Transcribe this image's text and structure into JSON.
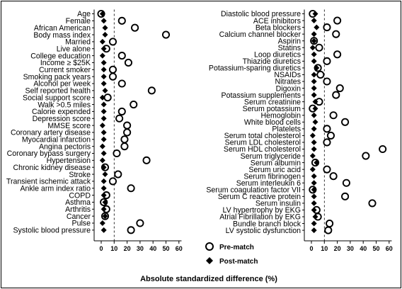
{
  "chart_data": {
    "type": "scatter",
    "xlabel": "Absolute standardized difference (%)",
    "xlim": [
      -5,
      62
    ],
    "xticks": [
      0,
      10,
      20,
      30,
      40,
      50,
      60
    ],
    "reference_line_x": 10,
    "grid": false,
    "legend": {
      "placement": "bottom-right",
      "entries": [
        {
          "marker": "circle",
          "label": "Pre-match"
        },
        {
          "marker": "diamond",
          "label": "Post-match"
        }
      ]
    },
    "series": [
      {
        "name": "Pre-match",
        "marker": "circle"
      },
      {
        "name": "Post-match",
        "marker": "diamond"
      }
    ],
    "panels": [
      {
        "variables": [
          {
            "label": "Age",
            "pre": 0,
            "post": 1
          },
          {
            "label": "Female",
            "pre": 16,
            "post": 2
          },
          {
            "label": "African American",
            "pre": 26,
            "post": 3
          },
          {
            "label": "Body mass index",
            "pre": 50,
            "post": 3
          },
          {
            "label": "Married",
            "pre": 9,
            "post": 1
          },
          {
            "label": "Live alone",
            "pre": 4,
            "post": 2
          },
          {
            "label": "College education",
            "pre": 16,
            "post": 1
          },
          {
            "label": "Income ≥ $25K",
            "pre": 21,
            "post": 2
          },
          {
            "label": "Current smoker",
            "pre": 9,
            "post": 2
          },
          {
            "label": "Smoking pack years",
            "pre": 9,
            "post": 2
          },
          {
            "label": "Alcohol per week",
            "pre": 16,
            "post": 2
          },
          {
            "label": "Self reported health",
            "pre": 39,
            "post": 3
          },
          {
            "label": "Social support score",
            "pre": 5,
            "post": 1
          },
          {
            "label": "Walk >0.5 miles",
            "pre": 25,
            "post": 2
          },
          {
            "label": "Calorie expended",
            "pre": 16,
            "post": 2
          },
          {
            "label": "Depression score",
            "pre": 14,
            "post": 2
          },
          {
            "label": "MMSE score",
            "pre": 20,
            "post": 1
          },
          {
            "label": "Coronary artery disease",
            "pre": 20,
            "post": 2
          },
          {
            "label": "Myocardial infarction",
            "pre": 18,
            "post": 2
          },
          {
            "label": "Angina pectoris",
            "pre": 18,
            "post": 1
          },
          {
            "label": "Coronary bypass surgery",
            "pre": 12,
            "post": 2
          },
          {
            "label": "Hypertension",
            "pre": 35,
            "post": 1
          },
          {
            "label": "Chronic kidney disease",
            "pre": 3,
            "post": 2
          },
          {
            "label": "Stroke",
            "pre": 13,
            "post": 3
          },
          {
            "label": "Transient ischemic attack",
            "pre": 9,
            "post": 2
          },
          {
            "label": "Ankle arm index ratio",
            "pre": 23,
            "post": 2
          },
          {
            "label": "COPD",
            "pre": 4,
            "post": 2
          },
          {
            "label": "Asthma",
            "pre": 2,
            "post": 3
          },
          {
            "label": "Arthritis",
            "pre": 4,
            "post": 2
          },
          {
            "label": "Cancer",
            "pre": 3,
            "post": 3
          },
          {
            "label": "Pulse",
            "pre": 30,
            "post": 1
          },
          {
            "label": "Systolic blood pressure",
            "pre": 23,
            "post": 2
          }
        ]
      },
      {
        "variables": [
          {
            "label": "Diastolic blood pressure",
            "pre": 1,
            "post": 3
          },
          {
            "label": "ACE inhibitors",
            "pre": 20,
            "post": 2
          },
          {
            "label": "Beta blockers",
            "pre": 12,
            "post": 4
          },
          {
            "label": "Calcium channel blocker",
            "pre": 19,
            "post": 2
          },
          {
            "label": "Aspirin",
            "pre": 2,
            "post": 2
          },
          {
            "label": "Statins",
            "pre": 6,
            "post": 1
          },
          {
            "label": "Loop diuretics",
            "pre": 20,
            "post": 2
          },
          {
            "label": "Thiazide diuretics",
            "pre": 12,
            "post": 2
          },
          {
            "label": "Potassium-sparing diuretics",
            "pre": 5,
            "post": 4
          },
          {
            "label": "NSAIDs",
            "pre": 7,
            "post": 2
          },
          {
            "label": "Nitrates",
            "pre": 12,
            "post": 2
          },
          {
            "label": "Digoxin",
            "pre": 22,
            "post": 2
          },
          {
            "label": "Potassium supplements",
            "pre": 19,
            "post": 2
          },
          {
            "label": "Serum creatinine",
            "pre": 6,
            "post": 3
          },
          {
            "label": "Serum potassium",
            "pre": 1,
            "post": 3
          },
          {
            "label": "Hemoglobin",
            "pre": 17,
            "post": 2
          },
          {
            "label": "White blood cells",
            "pre": 26,
            "post": 3
          },
          {
            "label": "Platelets",
            "pre": 12,
            "post": 2
          },
          {
            "label": "Serum total cholesterol",
            "pre": 15,
            "post": 1
          },
          {
            "label": "Serum LDL cholesterol",
            "pre": 12,
            "post": 2
          },
          {
            "label": "Serum HDL cholesterol",
            "pre": 55,
            "post": 2
          },
          {
            "label": "Serum triglyceride",
            "pre": 42,
            "post": 1
          },
          {
            "label": "Serum albumin",
            "pre": 3,
            "post": 4
          },
          {
            "label": "Serum uric acid",
            "pre": 12,
            "post": 1
          },
          {
            "label": "Serum fibrinogen",
            "pre": 17,
            "post": 2
          },
          {
            "label": "Serum interleukin 6",
            "pre": 27,
            "post": 2
          },
          {
            "label": "Serum coagulation factor VII",
            "pre": 1,
            "post": 2
          },
          {
            "label": "Serum C reactive protein",
            "pre": 26,
            "post": 2
          },
          {
            "label": "Serum insulin",
            "pre": 47,
            "post": 2
          },
          {
            "label": "LV hypertrophy by EKG",
            "pre": 4,
            "post": 2
          },
          {
            "label": "Atrial Fibrillation by EKG",
            "pre": 5,
            "post": 3
          },
          {
            "label": "Bundle branch block",
            "pre": 14,
            "post": 2
          },
          {
            "label": "LV systolic dysfunction",
            "pre": 13,
            "post": 2
          }
        ]
      }
    ]
  }
}
